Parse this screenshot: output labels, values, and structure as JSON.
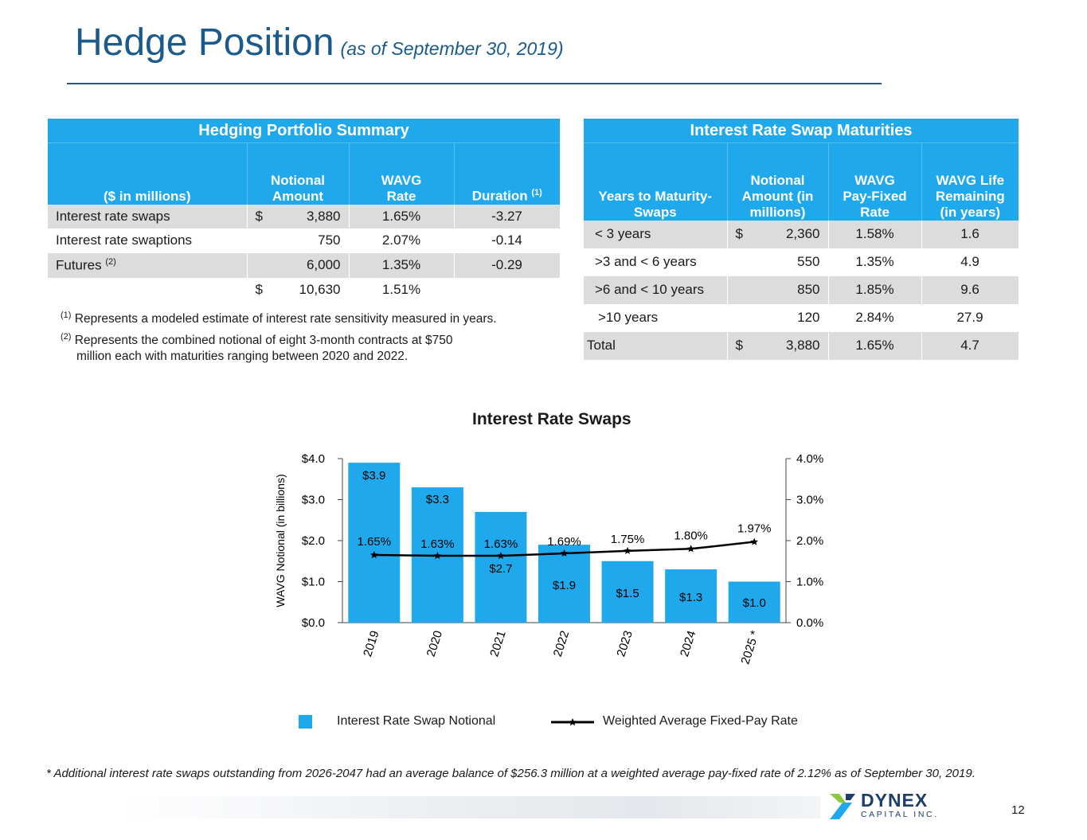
{
  "header": {
    "title": "Hedge Position",
    "subtitle": "(as of September 30, 2019)"
  },
  "hedging": {
    "caption": "Hedging Portfolio Summary",
    "col_label": "($ in millions)",
    "col_notional": [
      "Notional",
      "Amount"
    ],
    "col_wavg": [
      "WAVG",
      "Rate"
    ],
    "col_duration": "Duration",
    "duration_note": "(1)",
    "rows": [
      {
        "label": "Interest rate swaps",
        "label_note": "",
        "dollar": "$",
        "notional": "3,880",
        "rate": "1.65%",
        "duration": "-3.27"
      },
      {
        "label": "Interest rate swaptions",
        "label_note": "",
        "dollar": "",
        "notional": "750",
        "rate": "2.07%",
        "duration": "-0.14"
      },
      {
        "label": "Futures",
        "label_note": "(2)",
        "dollar": "",
        "notional": "6,000",
        "rate": "1.35%",
        "duration": "-0.29"
      },
      {
        "label": "",
        "label_note": "",
        "dollar": "$",
        "notional": "10,630",
        "rate": "1.51%",
        "duration": ""
      }
    ],
    "footnotes": [
      {
        "mark": "(1)",
        "text": "Represents a modeled estimate of interest rate sensitivity measured in years."
      },
      {
        "mark": "(2)",
        "text": "Represents the combined notional of eight 3-month contracts at $750",
        "text2": "million each with maturities ranging between 2020 and 2022."
      }
    ]
  },
  "maturities": {
    "caption": "Interest Rate Swap Maturities",
    "col_years": [
      "Years to Maturity-",
      "Swaps"
    ],
    "col_notional": [
      "Notional",
      "Amount (in",
      "millions)"
    ],
    "col_rate": [
      "WAVG",
      "Pay-Fixed",
      "Rate"
    ],
    "col_life": [
      "WAVG Life",
      "Remaining",
      "(in years)"
    ],
    "rows": [
      {
        "years": "< 3 years",
        "dollar": "$",
        "notional": "2,360",
        "rate": "1.58%",
        "life": "1.6"
      },
      {
        "years": ">3 and < 6 years",
        "dollar": "",
        "notional": "550",
        "rate": "1.35%",
        "life": "4.9"
      },
      {
        "years": ">6 and < 10 years",
        "dollar": "",
        "notional": "850",
        "rate": "1.85%",
        "life": "9.6"
      },
      {
        "years": ">10 years",
        "dollar": "",
        "notional": "120",
        "rate": "2.84%",
        "life": "27.9"
      },
      {
        "years": "Total",
        "dollar": "$",
        "notional": "3,880",
        "rate": "1.65%",
        "life": "4.7"
      }
    ]
  },
  "chart_data": {
    "type": "bar",
    "title": "Interest Rate Swaps",
    "ylabel": "WAVG Notional (in billions)",
    "categories": [
      "2019",
      "2020",
      "2021",
      "2022",
      "2023",
      "2024",
      "2025 *"
    ],
    "series": [
      {
        "name": "Interest Rate Swap Notional",
        "type": "bar",
        "axis": "left",
        "values": [
          3.9,
          3.3,
          2.7,
          1.9,
          1.5,
          1.3,
          1.0
        ],
        "labels": [
          "$3.9",
          "$3.3",
          "$2.7",
          "$1.9",
          "$1.5",
          "$1.3",
          "$1.0"
        ]
      },
      {
        "name": "Weighted Average Fixed-Pay Rate",
        "type": "line",
        "axis": "right",
        "values": [
          1.65,
          1.63,
          1.63,
          1.69,
          1.75,
          1.8,
          1.97
        ],
        "labels": [
          "1.65%",
          "1.63%",
          "1.63%",
          "1.69%",
          "1.75%",
          "1.80%",
          "1.97%"
        ]
      }
    ],
    "ylim": [
      0,
      4
    ],
    "y2lim": [
      0,
      4
    ],
    "yticks": [
      "$0.0",
      "$1.0",
      "$2.0",
      "$3.0",
      "$4.0"
    ],
    "y2ticks": [
      "0.0%",
      "1.0%",
      "2.0%",
      "3.0%",
      "4.0%"
    ],
    "grid": false,
    "legend": "bottom",
    "colors": {
      "bar": "#1fa9ec",
      "line": "#000000"
    }
  },
  "bottom_note": "* Additional interest rate swaps outstanding from 2026-2047 had an average balance of $256.3 million at a weighted average pay-fixed rate of 2.12% as of September 30, 2019.",
  "page_number": "12",
  "logo": {
    "name": "DYNEX",
    "sub": "CAPITAL INC."
  }
}
